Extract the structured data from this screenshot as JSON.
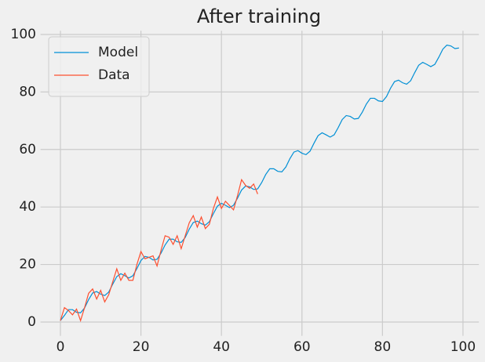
{
  "chart_data": {
    "type": "line",
    "title": "After training",
    "series": [
      {
        "name": "Model",
        "color": "#008fd5",
        "x": [
          0,
          1,
          2,
          3,
          4,
          5,
          6,
          7,
          8,
          9,
          10,
          11,
          12,
          13,
          14,
          15,
          16,
          17,
          18,
          19,
          20,
          21,
          22,
          23,
          24,
          25,
          26,
          27,
          28,
          29,
          30,
          31,
          32,
          33,
          34,
          35,
          36,
          37,
          38,
          39,
          40,
          41,
          42,
          43,
          44,
          45,
          46,
          47,
          48,
          49,
          50,
          51,
          52,
          53,
          54,
          55,
          56,
          57,
          58,
          59,
          60,
          61,
          62,
          63,
          64,
          65,
          66,
          67,
          68,
          69,
          70,
          71,
          72,
          73,
          74,
          75,
          76,
          77,
          78,
          79,
          80,
          81,
          82,
          83,
          84,
          85,
          86,
          87,
          88,
          89,
          90,
          91,
          92,
          93,
          94,
          95,
          96,
          97,
          98,
          99
        ],
        "values": [
          0.5,
          2.3,
          4.3,
          4.3,
          3.4,
          3.2,
          4.9,
          7.8,
          10.1,
          10.6,
          9.7,
          9.2,
          10.4,
          13.2,
          15.8,
          16.8,
          16.1,
          15.3,
          16.1,
          18.6,
          21.4,
          22.8,
          22.5,
          21.6,
          21.8,
          24.0,
          26.8,
          28.8,
          28.8,
          27.9,
          27.7,
          29.4,
          32.3,
          34.6,
          35.1,
          34.2,
          33.7,
          34.9,
          37.7,
          40.3,
          41.3,
          40.6,
          39.8,
          40.6,
          43.1,
          45.9,
          47.3,
          47.0,
          46.1,
          46.3,
          48.5,
          51.3,
          53.3,
          53.3,
          52.4,
          52.2,
          53.9,
          56.8,
          59.1,
          59.6,
          58.7,
          58.2,
          59.4,
          62.2,
          64.8,
          65.8,
          65.1,
          64.3,
          65.1,
          67.6,
          70.4,
          71.8,
          71.5,
          70.6,
          70.8,
          73.0,
          75.8,
          77.8,
          77.8,
          76.9,
          76.7,
          78.4,
          81.3,
          83.6,
          84.1,
          83.2,
          82.7,
          83.9,
          86.7,
          89.3,
          90.3,
          89.6,
          88.8,
          89.6,
          92.1,
          94.9,
          96.3,
          96.0,
          95.1,
          95.3
        ]
      },
      {
        "name": "Data",
        "color": "#fc4f30",
        "x": [
          0,
          1,
          2,
          3,
          4,
          5,
          6,
          7,
          8,
          9,
          10,
          11,
          12,
          13,
          14,
          15,
          16,
          17,
          18,
          19,
          20,
          21,
          22,
          23,
          24,
          25,
          26,
          27,
          28,
          29,
          30,
          31,
          32,
          33,
          34,
          35,
          36,
          37,
          38,
          39,
          40,
          41,
          42,
          43,
          44,
          45,
          46,
          47,
          48,
          49
        ],
        "values": [
          0.5,
          5,
          4,
          2.5,
          4.5,
          0.5,
          5,
          10,
          11.5,
          8,
          11,
          7,
          9.5,
          14,
          18.5,
          14.5,
          17,
          14.5,
          14.5,
          20,
          24.5,
          22,
          22.5,
          23,
          19.5,
          25,
          30,
          29.5,
          27,
          30,
          25.5,
          30,
          34.5,
          37,
          33,
          36.5,
          32.5,
          34,
          39.5,
          43.5,
          39.5,
          42,
          40.5,
          39,
          44,
          49.5,
          47.5,
          46.5,
          48,
          44.5
        ]
      }
    ],
    "xlim": [
      -4.95,
      103.95
    ],
    "xticks": [
      0,
      20,
      40,
      60,
      80,
      100
    ],
    "ylim": [
      -4.8,
      101.3
    ],
    "yticks": [
      0,
      20,
      40,
      60,
      80,
      100
    ],
    "grid": true,
    "legend": "upper left"
  }
}
